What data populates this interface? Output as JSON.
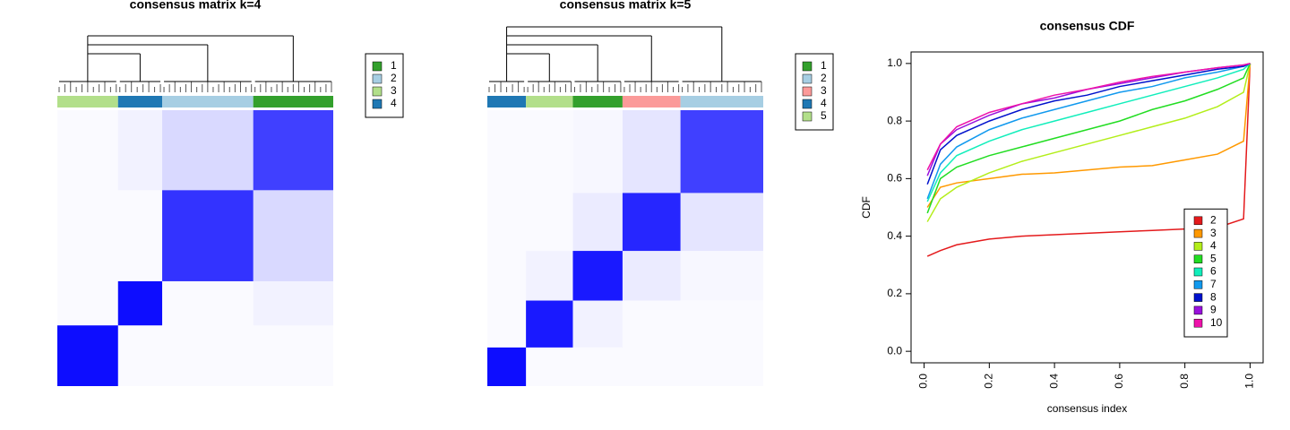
{
  "chart_data": [
    {
      "type": "heatmap",
      "title": "consensus matrix k=4",
      "legend": [
        {
          "name": "1",
          "color": "#33a02c"
        },
        {
          "name": "2",
          "color": "#a6cee3"
        },
        {
          "name": "3",
          "color": "#b2df8a"
        },
        {
          "name": "4",
          "color": "#1f78b4"
        }
      ],
      "segments": [
        {
          "color": "#b2df8a",
          "size": 22
        },
        {
          "color": "#1f78b4",
          "size": 16
        },
        {
          "color": "#a6cee3",
          "size": 33
        },
        {
          "color": "#33a02c",
          "size": 29
        }
      ],
      "matrix": [
        [
          0.95,
          0.02,
          0.02,
          0.02
        ],
        [
          0.02,
          0.95,
          0.02,
          0.05
        ],
        [
          0.02,
          0.02,
          0.8,
          0.15
        ],
        [
          0.02,
          0.05,
          0.15,
          0.75
        ]
      ],
      "color": "#0000ff"
    },
    {
      "type": "heatmap",
      "title": "consensus matrix k=5",
      "legend": [
        {
          "name": "1",
          "color": "#33a02c"
        },
        {
          "name": "2",
          "color": "#a6cee3"
        },
        {
          "name": "3",
          "color": "#fb9a99"
        },
        {
          "name": "4",
          "color": "#1f78b4"
        },
        {
          "name": "5",
          "color": "#b2df8a"
        }
      ],
      "segments": [
        {
          "color": "#1f78b4",
          "size": 14
        },
        {
          "color": "#b2df8a",
          "size": 17
        },
        {
          "color": "#33a02c",
          "size": 18
        },
        {
          "color": "#fb9a99",
          "size": 21
        },
        {
          "color": "#a6cee3",
          "size": 30
        }
      ],
      "matrix": [
        [
          0.95,
          0.02,
          0.02,
          0.02,
          0.02
        ],
        [
          0.02,
          0.9,
          0.05,
          0.02,
          0.02
        ],
        [
          0.02,
          0.05,
          0.9,
          0.08,
          0.03
        ],
        [
          0.02,
          0.02,
          0.08,
          0.85,
          0.1
        ],
        [
          0.02,
          0.02,
          0.03,
          0.1,
          0.75
        ]
      ],
      "color": "#0000ff"
    },
    {
      "type": "line",
      "title": "consensus CDF",
      "x_label": "consensus index",
      "y_label": "CDF",
      "x": [
        0.01,
        0.05,
        0.1,
        0.2,
        0.3,
        0.4,
        0.5,
        0.6,
        0.7,
        0.8,
        0.9,
        0.98,
        1.0
      ],
      "series": [
        {
          "name": "2",
          "color": "#e41a1c",
          "values": [
            0.33,
            0.35,
            0.37,
            0.39,
            0.4,
            0.405,
            0.41,
            0.415,
            0.42,
            0.425,
            0.43,
            0.46,
            1.0
          ]
        },
        {
          "name": "3",
          "color": "#ff9900",
          "values": [
            0.5,
            0.57,
            0.585,
            0.6,
            0.615,
            0.62,
            0.63,
            0.64,
            0.645,
            0.665,
            0.685,
            0.73,
            1.0
          ]
        },
        {
          "name": "4",
          "color": "#b3ee1a",
          "values": [
            0.45,
            0.53,
            0.57,
            0.62,
            0.66,
            0.69,
            0.72,
            0.75,
            0.78,
            0.81,
            0.85,
            0.9,
            1.0
          ]
        },
        {
          "name": "5",
          "color": "#22dd22",
          "values": [
            0.48,
            0.6,
            0.64,
            0.68,
            0.71,
            0.74,
            0.77,
            0.8,
            0.84,
            0.87,
            0.91,
            0.95,
            1.0
          ]
        },
        {
          "name": "6",
          "color": "#11eebb",
          "values": [
            0.52,
            0.62,
            0.68,
            0.73,
            0.77,
            0.8,
            0.83,
            0.86,
            0.89,
            0.92,
            0.95,
            0.98,
            1.0
          ]
        },
        {
          "name": "7",
          "color": "#1199ee",
          "values": [
            0.53,
            0.65,
            0.71,
            0.77,
            0.81,
            0.84,
            0.87,
            0.9,
            0.92,
            0.95,
            0.97,
            0.99,
            1.0
          ]
        },
        {
          "name": "8",
          "color": "#0011cc",
          "values": [
            0.58,
            0.7,
            0.75,
            0.8,
            0.84,
            0.87,
            0.89,
            0.92,
            0.94,
            0.96,
            0.98,
            0.99,
            1.0
          ]
        },
        {
          "name": "9",
          "color": "#9911dd",
          "values": [
            0.61,
            0.72,
            0.77,
            0.82,
            0.86,
            0.88,
            0.91,
            0.93,
            0.95,
            0.97,
            0.985,
            0.995,
            1.0
          ]
        },
        {
          "name": "10",
          "color": "#ee11aa",
          "values": [
            0.63,
            0.72,
            0.78,
            0.83,
            0.86,
            0.89,
            0.91,
            0.935,
            0.955,
            0.97,
            0.985,
            0.995,
            1.0
          ]
        }
      ],
      "xlim": [
        -0.04,
        1.04
      ],
      "ylim": [
        -0.04,
        1.04
      ],
      "xticks": [
        {
          "value": 0,
          "label": "0.0"
        },
        0.2,
        0.4,
        0.6,
        0.8,
        {
          "value": 1,
          "label": "1.0"
        }
      ],
      "yticks": [
        {
          "value": 0,
          "label": "0.0"
        },
        0.2,
        0.4,
        0.6,
        0.8,
        {
          "value": 1,
          "label": "1.0"
        }
      ],
      "legend_position": "bottom-right"
    }
  ]
}
